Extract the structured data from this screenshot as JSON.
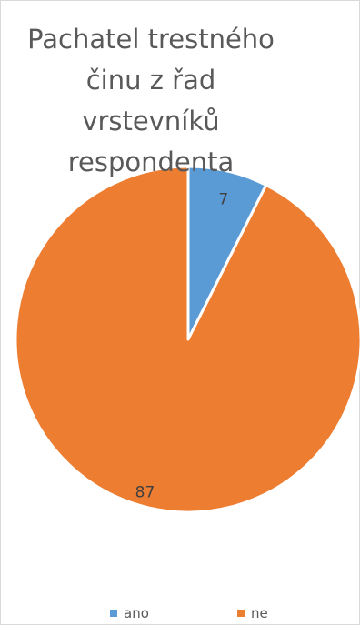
{
  "chart_data": {
    "type": "pie",
    "title_lines": [
      "Pachatel trestného",
      "činu z řad",
      "vrstevníků",
      "respondenta"
    ],
    "categories": [
      "ano",
      "ne"
    ],
    "values": [
      7,
      87
    ],
    "colors": [
      "#5b9bd5",
      "#ed7d31"
    ],
    "data_labels": [
      "7",
      "87"
    ],
    "legend": {
      "position": "bottom",
      "items": [
        {
          "label": "ano",
          "color": "#5b9bd5"
        },
        {
          "label": "ne",
          "color": "#ed7d31"
        }
      ]
    }
  }
}
